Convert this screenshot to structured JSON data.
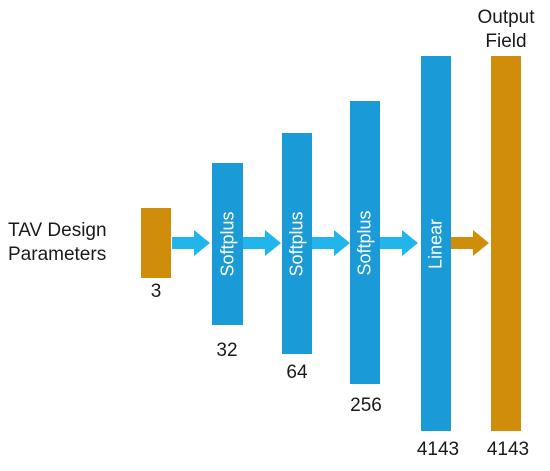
{
  "input": {
    "title_line1": "TAV Design",
    "title_line2": "Parameters",
    "size": "3"
  },
  "layers": [
    {
      "activation": "Softplus",
      "size": "32"
    },
    {
      "activation": "Softplus",
      "size": "64"
    },
    {
      "activation": "Softplus",
      "size": "256"
    },
    {
      "activation": "Linear",
      "size": "4143"
    }
  ],
  "output": {
    "title_line1": "Output",
    "title_line2": "Field",
    "size": "4143"
  },
  "colors": {
    "layer": "#1a9ad6",
    "io": "#cf8d0a",
    "arrow_blue": "#21b5ec",
    "arrow_orange": "#cf8d0a"
  }
}
